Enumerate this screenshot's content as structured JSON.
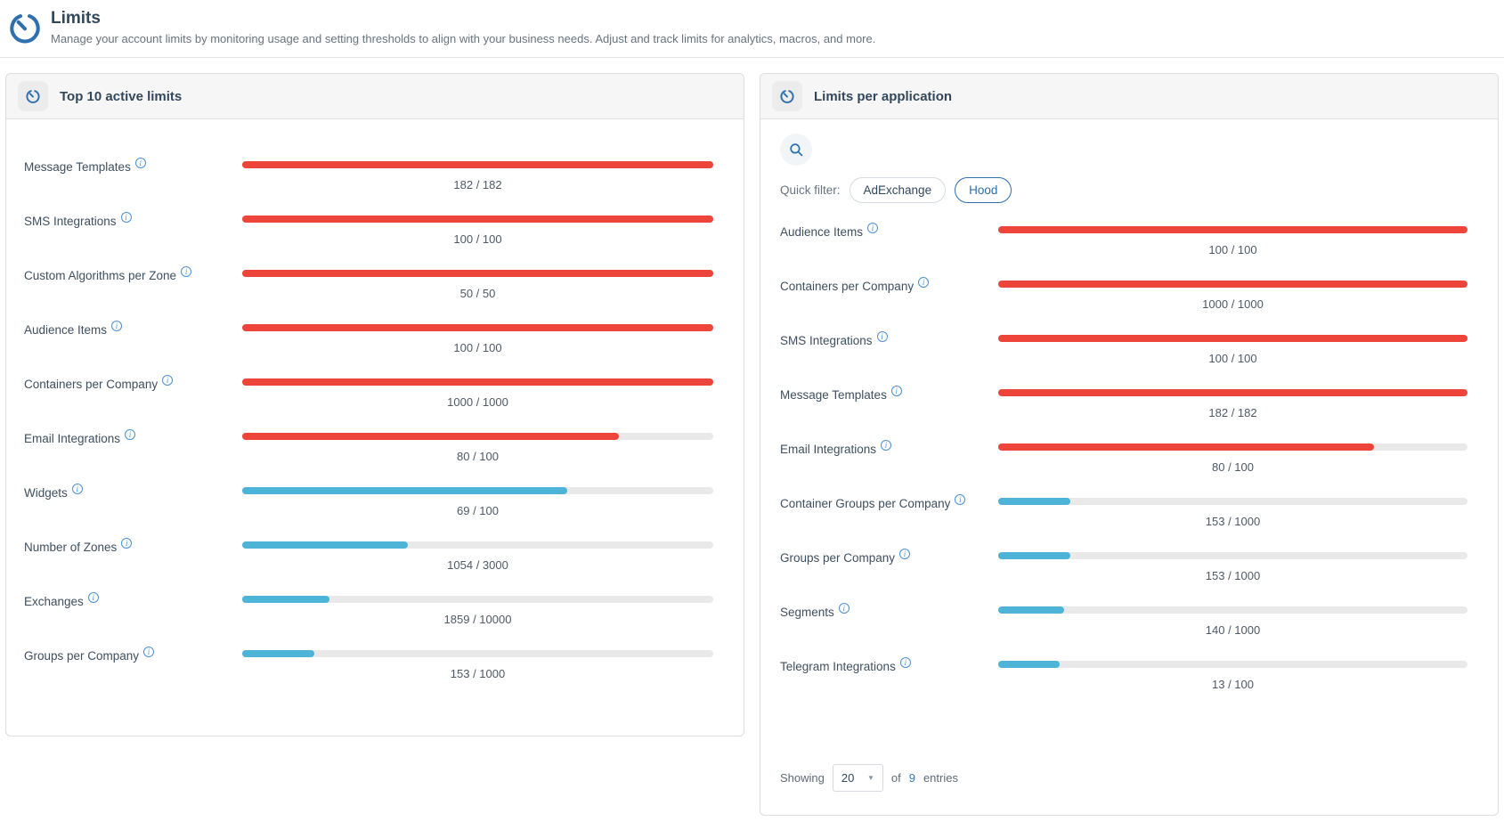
{
  "page": {
    "title": "Limits",
    "subtitle": "Manage your account limits by monitoring usage and setting thresholds to align with your business needs. Adjust and track limits for analytics, macros, and more."
  },
  "colors": {
    "red": "#ee453b",
    "blue": "#4db3d7",
    "accent": "#2e6fad"
  },
  "icons": {
    "info_glyph": "i"
  },
  "left_panel": {
    "title": "Top 10 active limits",
    "rows": [
      {
        "label": "Message Templates",
        "display": "182 / 182",
        "pct": 100,
        "color": "red"
      },
      {
        "label": "SMS Integrations",
        "display": "100 / 100",
        "pct": 100,
        "color": "red"
      },
      {
        "label": "Custom Algorithms per Zone",
        "display": "50 / 50",
        "pct": 100,
        "color": "red"
      },
      {
        "label": "Audience Items",
        "display": "100 / 100",
        "pct": 100,
        "color": "red"
      },
      {
        "label": "Containers per Company",
        "display": "1000 / 1000",
        "pct": 100,
        "color": "red"
      },
      {
        "label": "Email Integrations",
        "display": "80 / 100",
        "pct": 80,
        "color": "red"
      },
      {
        "label": "Widgets",
        "display": "69 / 100",
        "pct": 69,
        "color": "blue"
      },
      {
        "label": "Number of Zones",
        "display": "1054 / 3000",
        "pct": 35.1,
        "color": "blue"
      },
      {
        "label": "Exchanges",
        "display": "1859 / 10000",
        "pct": 18.6,
        "color": "blue"
      },
      {
        "label": "Groups per Company",
        "display": "153 / 1000",
        "pct": 15.3,
        "color": "blue"
      }
    ]
  },
  "right_panel": {
    "title": "Limits per application",
    "quick_filter_label": "Quick filter:",
    "filters": [
      {
        "label": "AdExchange",
        "active": false
      },
      {
        "label": "Hood",
        "active": true
      }
    ],
    "rows": [
      {
        "label": "Audience Items",
        "display": "100 / 100",
        "pct": 100,
        "color": "red"
      },
      {
        "label": "Containers per Company",
        "display": "1000 / 1000",
        "pct": 100,
        "color": "red"
      },
      {
        "label": "SMS Integrations",
        "display": "100 / 100",
        "pct": 100,
        "color": "red"
      },
      {
        "label": "Message Templates",
        "display": "182 / 182",
        "pct": 100,
        "color": "red"
      },
      {
        "label": "Email Integrations",
        "display": "80 / 100",
        "pct": 80,
        "color": "red"
      },
      {
        "label": "Container Groups per Company",
        "display": "153 / 1000",
        "pct": 15.3,
        "color": "blue"
      },
      {
        "label": "Groups per Company",
        "display": "153 / 1000",
        "pct": 15.3,
        "color": "blue"
      },
      {
        "label": "Segments",
        "display": "140 / 1000",
        "pct": 14,
        "color": "blue"
      },
      {
        "label": "Telegram Integrations",
        "display": "13 / 100",
        "pct": 13,
        "color": "blue"
      }
    ],
    "footer": {
      "showing_label": "Showing",
      "page_size": "20",
      "of_label": "of",
      "total": "9",
      "entries_label": "entries"
    }
  }
}
